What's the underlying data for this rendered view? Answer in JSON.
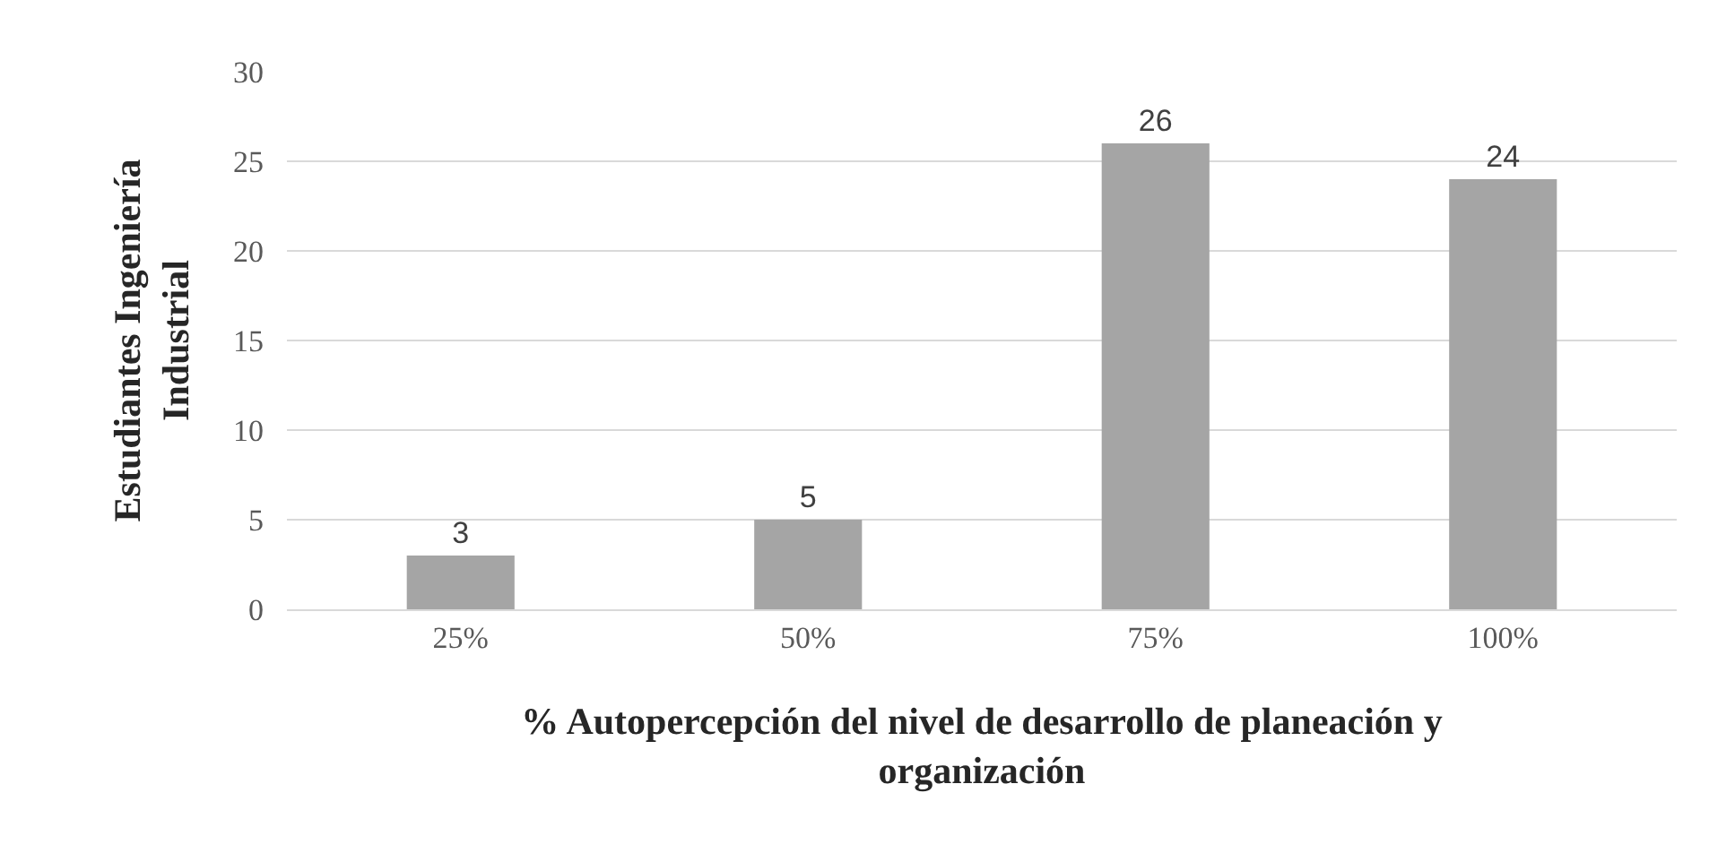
{
  "chart_data": {
    "type": "bar",
    "categories": [
      "25%",
      "50%",
      "75%",
      "100%"
    ],
    "values": [
      3,
      5,
      26,
      24
    ],
    "color": "#a5a5a5",
    "xlabel": "% Autopercepción del nivel de desarrollo de planeación y\norganización",
    "ylabel": "Estudiantes Ingeniería\nIndustrial",
    "ylim": [
      0,
      30
    ],
    "yticks": [
      0,
      5,
      10,
      15,
      20,
      25,
      30
    ],
    "grid": "y",
    "data_labels": true,
    "legend": false
  }
}
